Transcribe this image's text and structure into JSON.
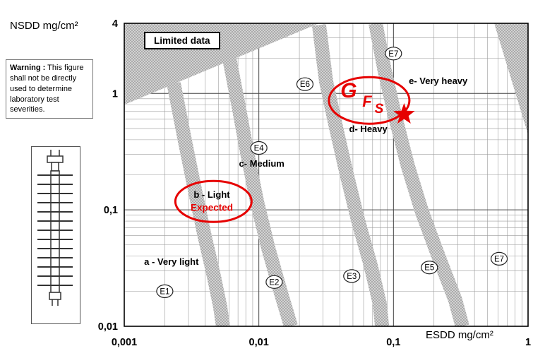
{
  "figure": {
    "y_axis_title": "NSDD mg/cm²",
    "x_axis_title": "ESDD mg/cm²",
    "warning": {
      "label": "Warning :",
      "text": " This figure shall not be directly used to determine laboratory test severities."
    },
    "limited_data_label": "Limited data"
  },
  "chart_data": {
    "type": "scatter",
    "title": "Site pollution severity classes: NSDD vs ESDD (log-log)",
    "x_axis": {
      "label": "ESDD mg/cm²",
      "scale": "log",
      "range": [
        0.001,
        1
      ],
      "ticks": [
        "0,001",
        "0,01",
        "0,1",
        "1"
      ],
      "tick_values": [
        0.001,
        0.01,
        0.1,
        1
      ]
    },
    "y_axis": {
      "label": "NSDD mg/cm²",
      "scale": "log",
      "range": [
        0.01,
        4
      ],
      "ticks": [
        "0,01",
        "0,1",
        "1",
        "4"
      ],
      "tick_values": [
        0.01,
        0.1,
        1,
        4
      ]
    },
    "grid": "log minor + major, both axes",
    "zones": [
      {
        "id": "a",
        "label": "a - Very light",
        "esdd": 0.00224,
        "nsdd": 0.0356
      },
      {
        "id": "b",
        "label": "b - Light",
        "esdd": 0.00447,
        "nsdd": 0.134
      },
      {
        "id": "c",
        "label": "c- Medium",
        "esdd": 0.0105,
        "nsdd": 0.248
      },
      {
        "id": "d",
        "label": "d- Heavy",
        "esdd": 0.065,
        "nsdd": 0.491
      },
      {
        "id": "e",
        "label": "e- Very heavy",
        "esdd": 0.215,
        "nsdd": 1.27
      }
    ],
    "sites": [
      {
        "label": "E1",
        "esdd": 0.002,
        "nsdd": 0.02
      },
      {
        "label": "E2",
        "esdd": 0.013,
        "nsdd": 0.024
      },
      {
        "label": "E3",
        "esdd": 0.049,
        "nsdd": 0.027
      },
      {
        "label": "E4",
        "esdd": 0.01,
        "nsdd": 0.34
      },
      {
        "label": "E5",
        "esdd": 0.185,
        "nsdd": 0.032
      },
      {
        "label": "E6",
        "esdd": 0.022,
        "nsdd": 1.2
      },
      {
        "label": "E7",
        "esdd": 0.1,
        "nsdd": 2.2
      },
      {
        "label": "E7",
        "esdd": 0.61,
        "nsdd": 0.038
      }
    ],
    "boundaries": [
      {
        "name": "a-b",
        "points": [
          [
            0.00233,
            1.22
          ],
          [
            0.00283,
            0.387
          ],
          [
            0.00334,
            0.15
          ],
          [
            0.00396,
            0.059
          ],
          [
            0.00463,
            0.027
          ],
          [
            0.00517,
            0.0146
          ],
          [
            0.00542,
            0.01
          ]
        ]
      },
      {
        "name": "b-c",
        "points": [
          [
            0.006,
            2.07
          ],
          [
            0.00707,
            0.778
          ],
          [
            0.00817,
            0.314
          ],
          [
            0.00968,
            0.118
          ],
          [
            0.0117,
            0.0477
          ],
          [
            0.0146,
            0.0193
          ],
          [
            0.0173,
            0.01
          ]
        ]
      },
      {
        "name": "c-d",
        "points": [
          [
            0.028,
            3.87
          ],
          [
            0.0316,
            1.27
          ],
          [
            0.0374,
            0.512
          ],
          [
            0.0454,
            0.193
          ],
          [
            0.0551,
            0.0778
          ],
          [
            0.0676,
            0.0337
          ],
          [
            0.0791,
            0.0156
          ],
          [
            0.0823,
            0.01
          ]
        ]
      },
      {
        "name": "d-e",
        "points": [
          [
            0.0736,
            4.0
          ],
          [
            0.0861,
            1.56
          ],
          [
            0.103,
            0.631
          ],
          [
            0.128,
            0.237
          ],
          [
            0.163,
            0.0959
          ],
          [
            0.218,
            0.0387
          ],
          [
            0.288,
            0.0168
          ],
          [
            0.325,
            0.01
          ]
        ]
      }
    ],
    "limited_data_regions": [
      {
        "name": "top-left",
        "points": [
          [
            0.001,
            4
          ],
          [
            0.028,
            4
          ],
          [
            0.001,
            0.8
          ]
        ]
      },
      {
        "name": "top-right",
        "points": [
          [
            0.56,
            4
          ],
          [
            1,
            4
          ],
          [
            1,
            0.445
          ]
        ]
      }
    ],
    "annotations": {
      "expected": {
        "label": "Expected",
        "esdd": 0.00447,
        "nsdd": 0.104
      },
      "expected_ellipse": {
        "esdd": 0.0046,
        "nsdd": 0.118
      },
      "gfs_ellipse": {
        "esdd": 0.066,
        "nsdd": 0.87
      },
      "gfs_letters": [
        "G",
        "F",
        "S"
      ],
      "star": {
        "esdd": 0.12,
        "nsdd": 0.66
      }
    },
    "colors": {
      "annotation_red": "#e60000",
      "band_base": "#d2d2d2",
      "band_dot": "#8f8f8f",
      "grid_minor": "#9a9a9a",
      "grid_major": "#454545",
      "border": "#000000"
    }
  }
}
